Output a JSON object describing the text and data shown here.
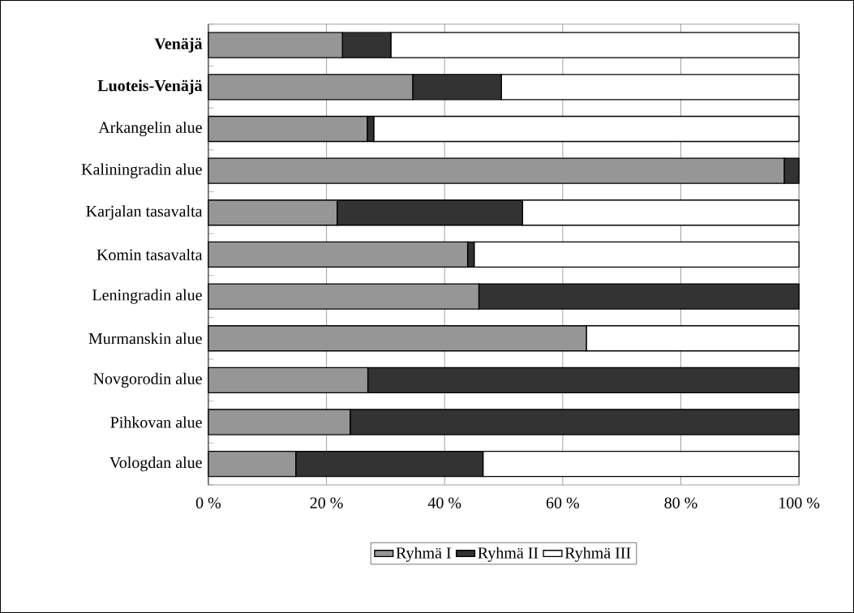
{
  "chart_data": {
    "type": "bar",
    "orientation": "horizontal",
    "stacked": true,
    "categories": [
      "**Venäjä**",
      "**Luoteis-Venäjä**",
      "Arkangelin alue",
      "Kaliningradin alue",
      "Karjalan tasavalta",
      "Komin tasavalta",
      "Leningradin alue",
      "Murmanskin alue",
      "Novgorodin alue",
      "Pihkovan alue",
      "Vologdan alue"
    ],
    "series": [
      {
        "name": "Ryhmä I",
        "color": "#969696",
        "values": [
          22.7,
          34.6,
          26.9,
          97.5,
          21.8,
          43.9,
          45.8,
          64.0,
          27.0,
          24.0,
          14.8
        ]
      },
      {
        "name": "Ryhmä II",
        "color": "#333333",
        "values": [
          8.2,
          15.0,
          1.1,
          2.5,
          31.4,
          1.1,
          54.2,
          0,
          73.0,
          76.0,
          31.7
        ]
      },
      {
        "name": "Ryhmä III",
        "color": "#ffffff",
        "values": [
          69.1,
          50.4,
          72.0,
          0,
          46.8,
          55.0,
          0,
          36.0,
          0,
          0,
          53.5
        ]
      }
    ],
    "xlim": [
      0,
      100
    ],
    "xticks": [
      {
        "value": 0,
        "label": "0 %"
      },
      {
        "value": 20,
        "label": "20 %"
      },
      {
        "value": 40,
        "label": "40 %"
      },
      {
        "value": 60,
        "label": "60 %"
      },
      {
        "value": 80,
        "label": "80 %"
      },
      {
        "value": 100,
        "label": "100 %"
      }
    ],
    "grid": true,
    "legend": "bottom"
  }
}
